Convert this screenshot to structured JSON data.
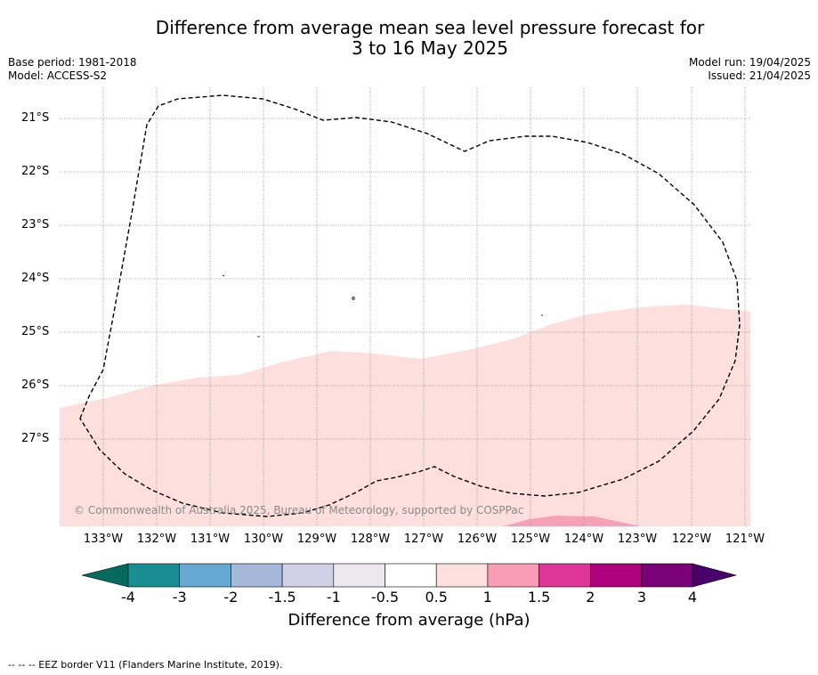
{
  "header": {
    "title_line1": "Difference from average mean sea level pressure forecast for",
    "title_line2": "3 to 16 May 2025",
    "base_period": "Base period: 1981-2018",
    "model": "Model: ACCESS-S2",
    "model_run": "Model run: 19/04/2025",
    "issued": "Issued: 21/04/2025"
  },
  "map": {
    "latitude_labels": [
      "21°S",
      "22°S",
      "23°S",
      "24°S",
      "25°S",
      "26°S",
      "27°S"
    ],
    "longitude_labels": [
      "133°W",
      "132°W",
      "131°W",
      "130°W",
      "129°W",
      "128°W",
      "127°W",
      "126°W",
      "125°W",
      "124°W",
      "123°W",
      "122°W",
      "121°W"
    ],
    "copyright": "© Commonwealth of Australia 2025, Bureau of Meteorology, supported by COSPPac",
    "shading": {
      "light_pink_band": "0.5 to 1",
      "pink_patch": "1 to 1.5"
    }
  },
  "colorbar": {
    "ticks": [
      "-4",
      "-3",
      "-2",
      "-1.5",
      "-1",
      "-0.5",
      "0.5",
      "1",
      "1.5",
      "2",
      "3",
      "4"
    ],
    "colors": [
      "#1a8f93",
      "#66a9d0",
      "#a6b8da",
      "#d0d1e6",
      "#ebe9ee",
      "#ffffff",
      "#fde0de",
      "#f99db7",
      "#de3598",
      "#ad017d",
      "#7a0177"
    ],
    "under_color": "#066a61",
    "over_color": "#49006a",
    "label": "Difference from average (hPa)"
  },
  "footnote": "--  --  -- EEZ border V11 (Flanders Marine Institute, 2019)."
}
